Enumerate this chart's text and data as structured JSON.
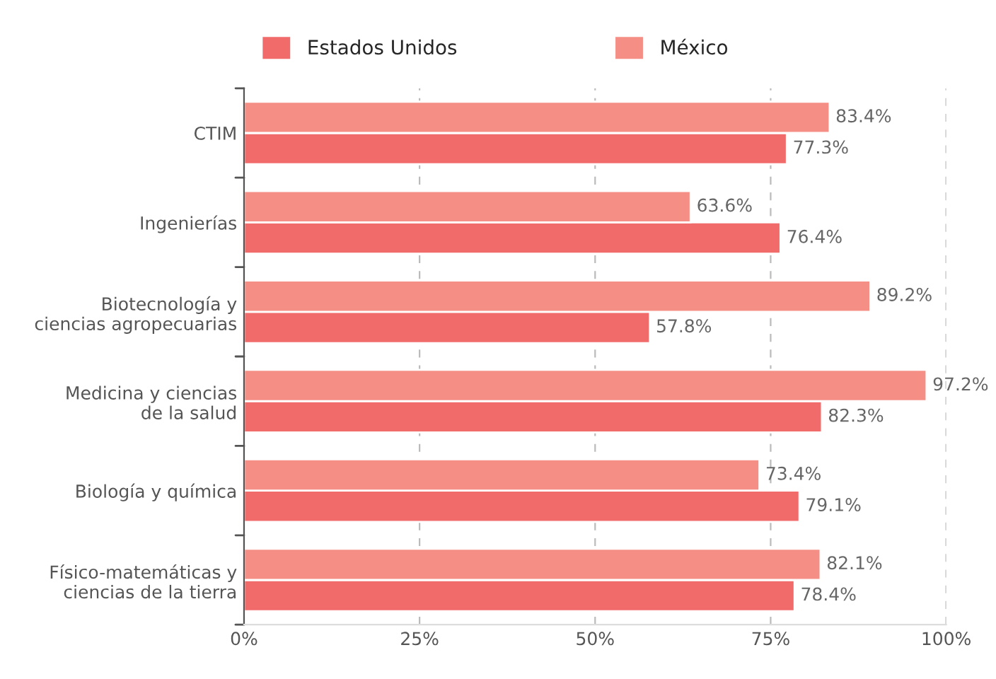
{
  "chart_data": {
    "type": "bar",
    "orientation": "horizontal",
    "categories": [
      "CTIM",
      "Ingenierías",
      "Biotecnología y\nciencias agropecuarias",
      "Medicina y ciencias\nde la salud",
      "Biología y química",
      "Físico-matemáticas y\nciencias de la tierra"
    ],
    "series": [
      {
        "name": "Estados Unidos",
        "color": "#f26b6b",
        "values": [
          77.3,
          76.4,
          57.8,
          82.3,
          79.1,
          78.4
        ],
        "value_labels": [
          "77.3%",
          "76.4%",
          "57.8%",
          "82.3%",
          "79.1%",
          "78.4%"
        ]
      },
      {
        "name": "México",
        "color": "#f58f85",
        "values": [
          83.4,
          63.6,
          89.2,
          97.2,
          73.4,
          82.1
        ],
        "value_labels": [
          "83.4%",
          "63.6%",
          "89.2%",
          "97.2%",
          "73.4%",
          "82.1%"
        ]
      }
    ],
    "xlim": [
      0,
      100
    ],
    "xticks": [
      {
        "value": 0,
        "label": "0%"
      },
      {
        "value": 25,
        "label": "25%"
      },
      {
        "value": 50,
        "label": "50%"
      },
      {
        "value": 75,
        "label": "75%"
      },
      {
        "value": 100,
        "label": "100%"
      }
    ],
    "grid": "x",
    "legend": "top"
  }
}
